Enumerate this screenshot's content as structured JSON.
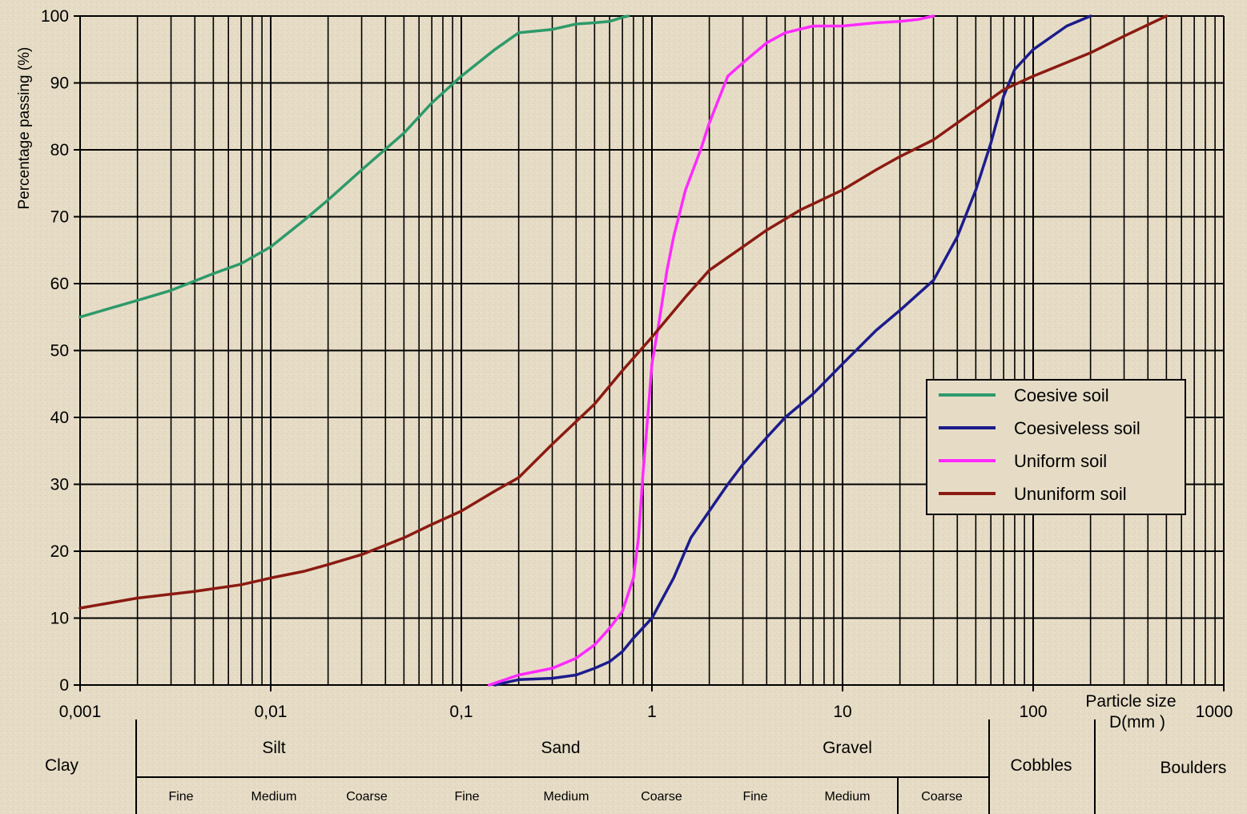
{
  "chart_data": {
    "type": "line",
    "title": "",
    "ylabel": "Percentage passing (%)",
    "xlabel_line1": "Particle size",
    "xlabel_line2": "D(mm )",
    "x_scale": "log",
    "xlim": [
      0.001,
      1000
    ],
    "ylim": [
      0,
      100
    ],
    "grid": true,
    "legend_position": "right-center",
    "x_tick_labels": [
      "0,001",
      "0,01",
      "0,1",
      "1",
      "10",
      "100",
      "1000"
    ],
    "y_tick_labels": [
      "0",
      "10",
      "20",
      "30",
      "40",
      "50",
      "60",
      "70",
      "80",
      "90",
      "100"
    ],
    "series": [
      {
        "name": "Coesive soil",
        "color": "#2e9a6a",
        "points": [
          [
            0.001,
            55
          ],
          [
            0.002,
            57.5
          ],
          [
            0.003,
            59
          ],
          [
            0.005,
            61.5
          ],
          [
            0.007,
            63
          ],
          [
            0.01,
            65.5
          ],
          [
            0.015,
            69.5
          ],
          [
            0.02,
            72.5
          ],
          [
            0.03,
            77
          ],
          [
            0.05,
            82.5
          ],
          [
            0.07,
            87
          ],
          [
            0.1,
            91
          ],
          [
            0.15,
            95
          ],
          [
            0.2,
            97.5
          ],
          [
            0.3,
            98
          ],
          [
            0.4,
            98.8
          ],
          [
            0.5,
            99
          ],
          [
            0.6,
            99.2
          ],
          [
            0.7,
            99.8
          ],
          [
            0.75,
            100
          ]
        ]
      },
      {
        "name": "Coesiveless soil",
        "color": "#1c1c8c",
        "points": [
          [
            0.15,
            0
          ],
          [
            0.2,
            0.8
          ],
          [
            0.3,
            1
          ],
          [
            0.4,
            1.5
          ],
          [
            0.5,
            2.5
          ],
          [
            0.6,
            3.5
          ],
          [
            0.7,
            5
          ],
          [
            0.8,
            7
          ],
          [
            1,
            10
          ],
          [
            1.3,
            16
          ],
          [
            1.6,
            22
          ],
          [
            2,
            26
          ],
          [
            2.5,
            30
          ],
          [
            3,
            33
          ],
          [
            4,
            37
          ],
          [
            5,
            40
          ],
          [
            7,
            43.5
          ],
          [
            10,
            48
          ],
          [
            15,
            53
          ],
          [
            20,
            56
          ],
          [
            30,
            60.5
          ],
          [
            40,
            67
          ],
          [
            50,
            74
          ],
          [
            60,
            81
          ],
          [
            70,
            88
          ],
          [
            80,
            92
          ],
          [
            100,
            95
          ],
          [
            150,
            98.5
          ],
          [
            200,
            100
          ]
        ]
      },
      {
        "name": "Uniform soil",
        "color": "#ff2aff",
        "points": [
          [
            0.14,
            0
          ],
          [
            0.2,
            1.5
          ],
          [
            0.3,
            2.5
          ],
          [
            0.4,
            4
          ],
          [
            0.5,
            6
          ],
          [
            0.6,
            8.5
          ],
          [
            0.7,
            11
          ],
          [
            0.8,
            16
          ],
          [
            0.85,
            22
          ],
          [
            0.9,
            32
          ],
          [
            0.95,
            40
          ],
          [
            1.0,
            48
          ],
          [
            1.1,
            55
          ],
          [
            1.2,
            62
          ],
          [
            1.3,
            67
          ],
          [
            1.5,
            74
          ],
          [
            1.8,
            80
          ],
          [
            2,
            84
          ],
          [
            2.5,
            91
          ],
          [
            3,
            93
          ],
          [
            4,
            96
          ],
          [
            5,
            97.5
          ],
          [
            7,
            98.5
          ],
          [
            10,
            98.5
          ],
          [
            15,
            99
          ],
          [
            20,
            99.2
          ],
          [
            25,
            99.5
          ],
          [
            30,
            100
          ]
        ]
      },
      {
        "name": "Ununiform soil",
        "color": "#8b1b12",
        "points": [
          [
            0.001,
            11.5
          ],
          [
            0.002,
            13
          ],
          [
            0.004,
            14
          ],
          [
            0.007,
            15
          ],
          [
            0.01,
            16
          ],
          [
            0.015,
            17
          ],
          [
            0.02,
            18
          ],
          [
            0.03,
            19.5
          ],
          [
            0.05,
            22
          ],
          [
            0.07,
            24
          ],
          [
            0.1,
            26
          ],
          [
            0.15,
            29
          ],
          [
            0.2,
            31
          ],
          [
            0.3,
            36
          ],
          [
            0.5,
            42
          ],
          [
            0.7,
            47
          ],
          [
            1,
            52
          ],
          [
            1.5,
            58
          ],
          [
            2,
            62
          ],
          [
            3,
            65.5
          ],
          [
            4,
            68
          ],
          [
            6,
            71
          ],
          [
            10,
            74
          ],
          [
            15,
            77
          ],
          [
            20,
            79
          ],
          [
            30,
            81.5
          ],
          [
            50,
            86
          ],
          [
            70,
            89
          ],
          [
            100,
            91
          ],
          [
            200,
            94.5
          ],
          [
            300,
            97
          ],
          [
            500,
            100
          ]
        ]
      }
    ]
  },
  "classification": {
    "bands": [
      {
        "id": "clay",
        "label": "Clay"
      },
      {
        "id": "silt",
        "label": "Silt"
      },
      {
        "id": "sand",
        "label": "Sand"
      },
      {
        "id": "gravel",
        "label": "Gravel"
      },
      {
        "id": "cobbles",
        "label": "Cobbles"
      },
      {
        "id": "boulders",
        "label": "Boulders"
      }
    ],
    "subdivisions": [
      "Fine",
      "Medium",
      "Coarse",
      "Fine",
      "Medium",
      "Coarse",
      "Fine",
      "Medium",
      "Coarse"
    ]
  }
}
